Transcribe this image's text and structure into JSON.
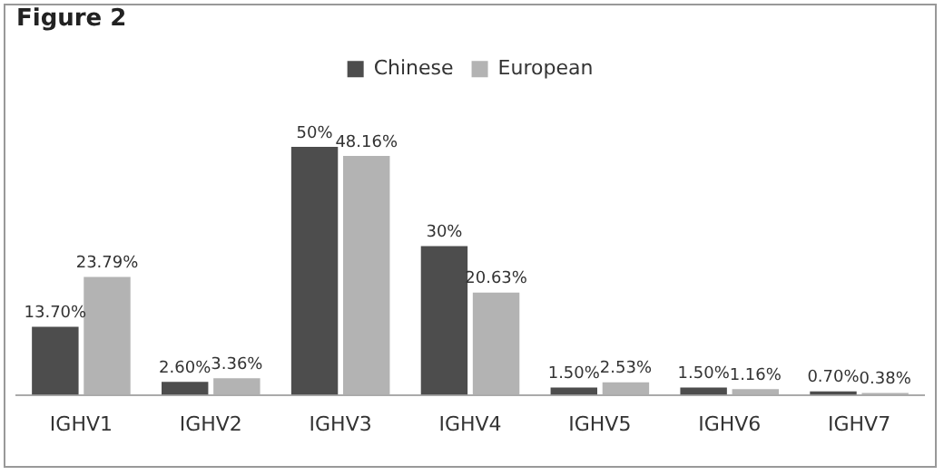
{
  "chart_data": {
    "type": "bar",
    "title": "Figure 2",
    "categories": [
      "IGHV1",
      "IGHV2",
      "IGHV3",
      "IGHV4",
      "IGHV5",
      "IGHV6",
      "IGHV7"
    ],
    "series": [
      {
        "name": "Chinese",
        "color": "#4d4d4d",
        "values": [
          13.7,
          2.6,
          50,
          30,
          1.5,
          1.5,
          0.7
        ],
        "value_labels": [
          "13.70%",
          "2.60%",
          "50%",
          "30%",
          "1.50%",
          "1.50%",
          "0.70%"
        ]
      },
      {
        "name": "European",
        "color": "#b3b3b3",
        "values": [
          23.79,
          3.36,
          48.16,
          20.63,
          2.53,
          1.16,
          0.38
        ],
        "value_labels": [
          "23.79%",
          "3.36%",
          "48.16%",
          "20.63%",
          "2.53%",
          "1.16%",
          "0.38%"
        ]
      }
    ],
    "legend": "top",
    "grid": false,
    "tick_labels": "x"
  }
}
